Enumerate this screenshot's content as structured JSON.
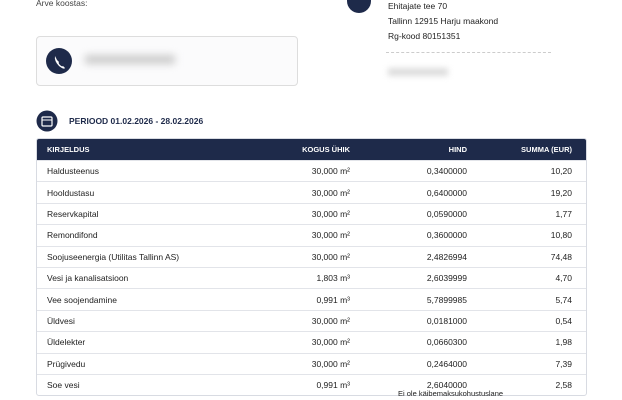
{
  "header": {
    "created_by_label": "Arve koostas:",
    "address_line1": "Ehitajate tee 70",
    "address_line2": "Tallinn 12915 Harju maakond",
    "reg_code": "Rg-kood 80151351"
  },
  "period": "PERIOOD 01.02.2026 - 28.02.2026",
  "table": {
    "columns": [
      "KIRJELDUS",
      "KOGUS ÜHIK",
      "HIND",
      "SUMMA (EUR)"
    ],
    "rows": [
      [
        "Haldusteenus",
        "30,000 m²",
        "0,3400000",
        "10,20"
      ],
      [
        "Hooldustasu",
        "30,000 m²",
        "0,6400000",
        "19,20"
      ],
      [
        "Reservkapital",
        "30,000 m²",
        "0,0590000",
        "1,77"
      ],
      [
        "Remondifond",
        "30,000 m²",
        "0,3600000",
        "10,80"
      ],
      [
        "Soojuseenergia (Utilitas Tallinn AS)",
        "30,000 m²",
        "2,4826994",
        "74,48"
      ],
      [
        "Vesi ja kanalisatsioon",
        "1,803 m³",
        "2,6039999",
        "4,70"
      ],
      [
        "Vee soojendamine",
        "0,991 m³",
        "5,7899985",
        "5,74"
      ],
      [
        "Üldvesi",
        "30,000 m²",
        "0,0181000",
        "0,54"
      ],
      [
        "Üldelekter",
        "30,000 m²",
        "0,0660300",
        "1,98"
      ],
      [
        "Prügivedu",
        "30,000 m²",
        "0,2464000",
        "7,39"
      ],
      [
        "Soe vesi",
        "0,991 m³",
        "2,6040000",
        "2,58"
      ]
    ]
  },
  "footer": {
    "vat_note": "Ei ole käibemaksukohustuslane"
  }
}
